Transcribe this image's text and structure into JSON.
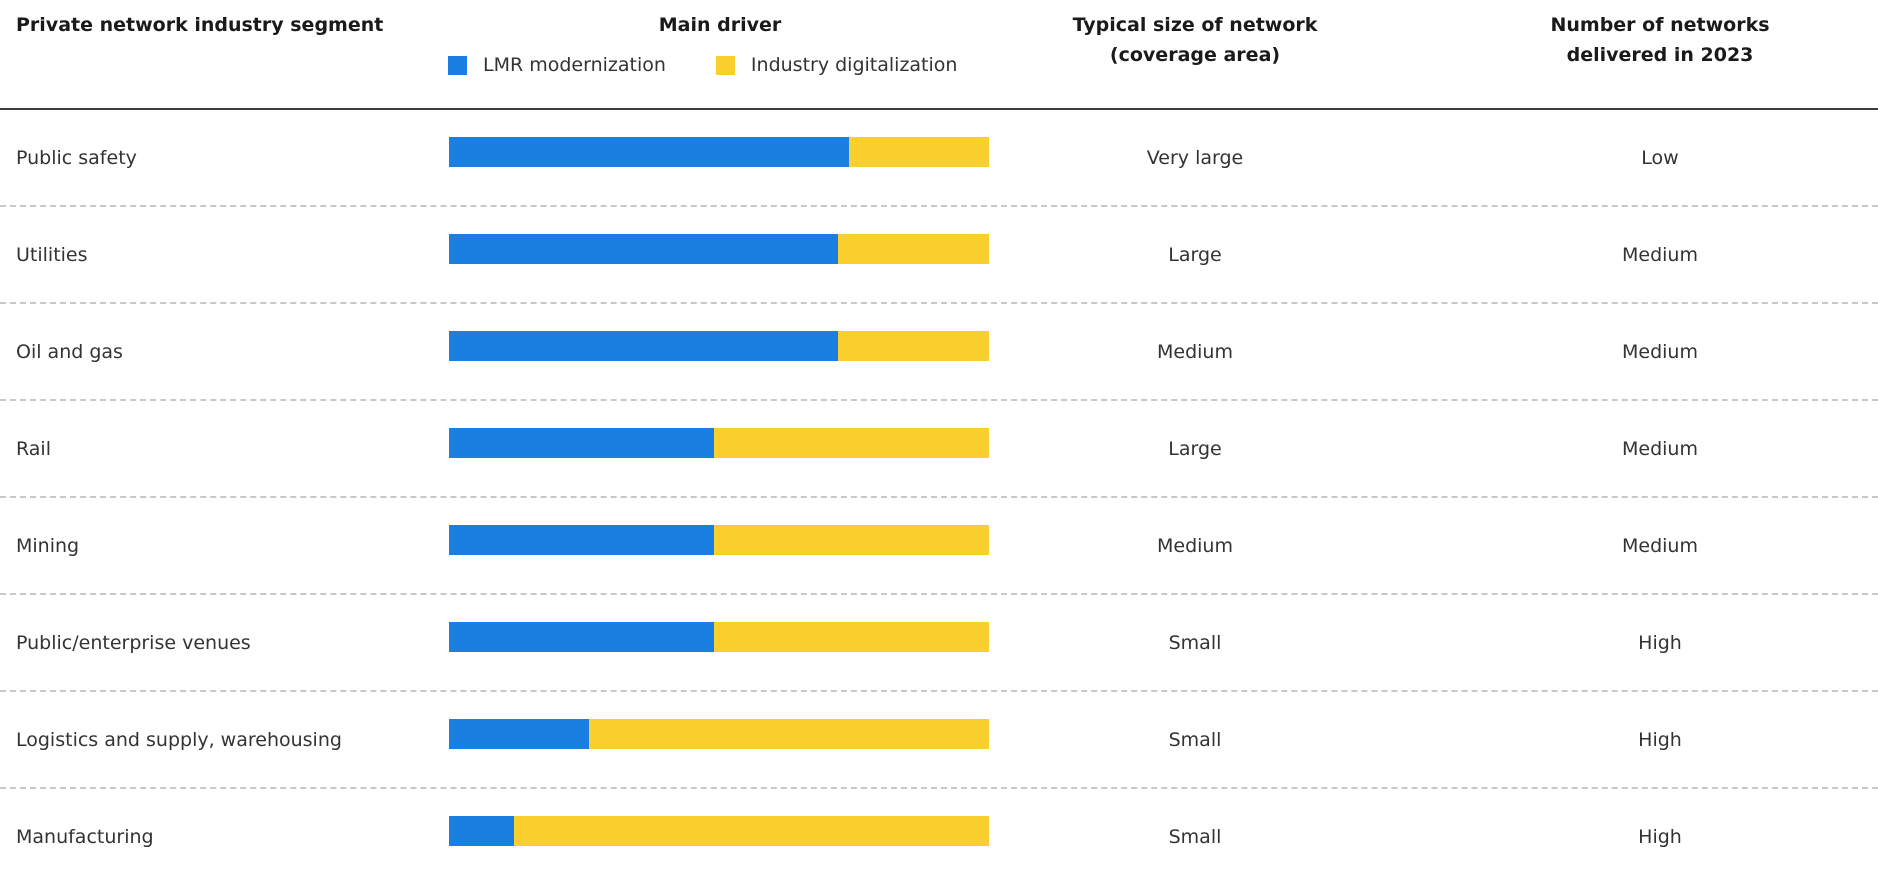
{
  "headers": {
    "segment": "Private network industry segment",
    "driver": "Main driver",
    "size_line1": "Typical size of network",
    "size_line2": "(coverage area)",
    "count_line1": "Number of networks",
    "count_line2": "delivered in 2023"
  },
  "legend": {
    "lmr": "LMR modernization",
    "digital": "Industry digitalization"
  },
  "colors": {
    "lmr": "#1a7fe0",
    "digital": "#f9cf2e"
  },
  "chart_data": {
    "type": "bar",
    "stacked": true,
    "orientation": "horizontal",
    "categories": [
      "Public safety",
      "Utilities",
      "Oil and gas",
      "Rail",
      "Mining",
      "Public/enterprise venues",
      "Logistics and supply, warehousing",
      "Manufacturing"
    ],
    "series": [
      {
        "name": "LMR modernization",
        "values": [
          74,
          72,
          72,
          49,
          49,
          49,
          26,
          12
        ]
      },
      {
        "name": "Industry digitalization",
        "values": [
          26,
          28,
          28,
          51,
          51,
          51,
          74,
          88
        ]
      }
    ],
    "xlim": [
      0,
      100
    ],
    "axis_visible": false,
    "legend_position": "top"
  },
  "rows": [
    {
      "segment": "Public safety",
      "size": "Very large",
      "count": "Low"
    },
    {
      "segment": "Utilities",
      "size": "Large",
      "count": "Medium"
    },
    {
      "segment": "Oil and gas",
      "size": "Medium",
      "count": "Medium"
    },
    {
      "segment": "Rail",
      "size": "Large",
      "count": "Medium"
    },
    {
      "segment": "Mining",
      "size": "Medium",
      "count": "Medium"
    },
    {
      "segment": "Public/enterprise venues",
      "size": "Small",
      "count": "High"
    },
    {
      "segment": "Logistics and supply, warehousing",
      "size": "Small",
      "count": "High"
    },
    {
      "segment": "Manufacturing",
      "size": "Small",
      "count": "High"
    }
  ]
}
